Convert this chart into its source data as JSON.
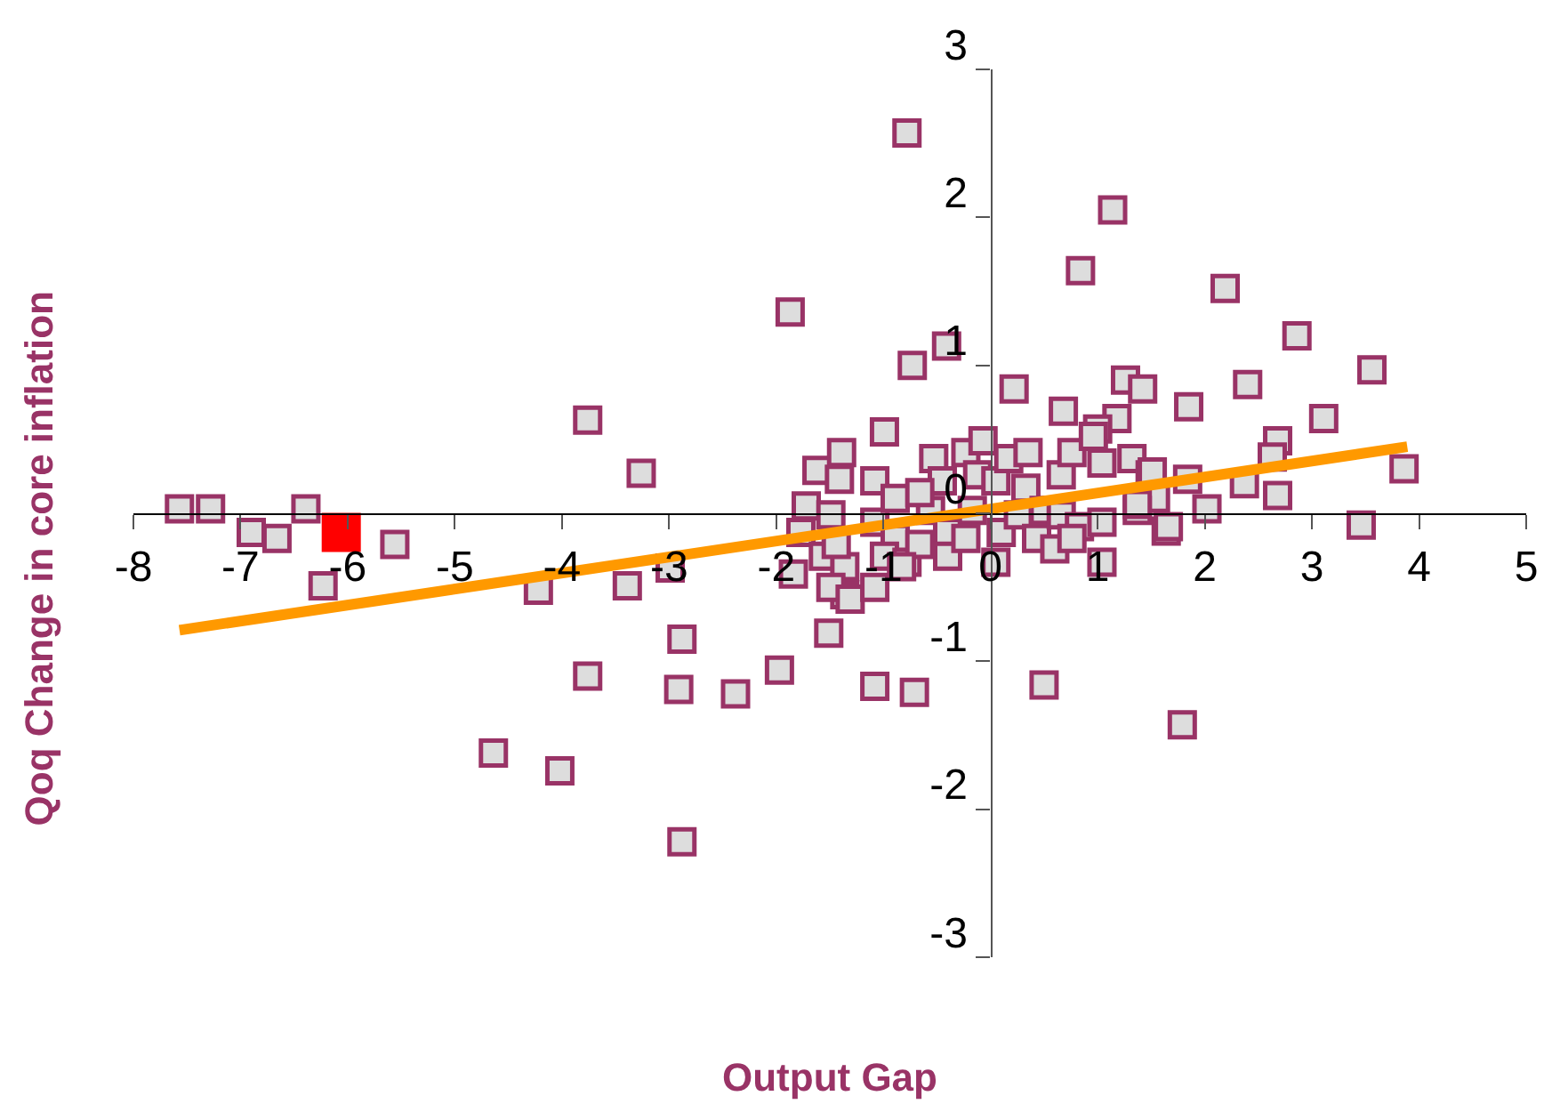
{
  "chart_data": {
    "type": "scatter",
    "xlabel": "Output Gap",
    "ylabel": "Qoq Change in core inflation",
    "xlim": [
      -8,
      5
    ],
    "ylim": [
      -3,
      3
    ],
    "xticks": [
      -8,
      -7,
      -6,
      -5,
      -4,
      -3,
      -2,
      -1,
      0,
      1,
      2,
      3,
      4,
      5
    ],
    "yticks": [
      -3,
      -2,
      -1,
      0,
      1,
      2,
      3
    ],
    "marker": "square",
    "series": [
      {
        "color": "#993366",
        "x": [
          -7.57,
          -7.28,
          -6.9,
          -6.66,
          -6.39,
          -6.23,
          -5.56,
          -4.64,
          -4.22,
          -4.02,
          -3.76,
          -3.76,
          -3.39,
          -3.26,
          -2.99,
          -2.88,
          -2.91,
          -2.88,
          -2.38,
          -1.97,
          -1.87,
          -0.78,
          1.14,
          0.84,
          2.19,
          2.86,
          3.56,
          3.11,
          2.4,
          1.85,
          -0.99,
          -0.73,
          -0.41,
          0.22,
          3.86,
          3.46,
          2.68,
          2.37,
          2.68,
          2.63,
          2.02,
          1.64,
          1.79,
          0.5,
          -0.71,
          -1.08,
          -1.51,
          -1.84,
          -1.36,
          0.68,
          1.26,
          1.42,
          1.18,
          1.0,
          -1.62,
          -1.39,
          -1.41,
          -1.72,
          -1.49,
          -1.77,
          -1.56,
          -1.36,
          -1.49,
          -1.31,
          -1.08,
          -1.08,
          -1.08,
          -0.89,
          -0.89,
          -0.99,
          -0.78,
          -0.66,
          -0.53,
          -0.45,
          -0.56,
          -0.4,
          -0.4,
          -0.23,
          -0.07,
          -0.12,
          -0.17,
          -0.23,
          0.05,
          0.1,
          0.05,
          0.17,
          0.35,
          0.33,
          0.26,
          0.43,
          0.6,
          0.5,
          0.66,
          0.76,
          0.96,
          1.04,
          0.66,
          0.83,
          1.04,
          1.04,
          1.32,
          1.49,
          1.54,
          1.66,
          1.37,
          1.51,
          1.84,
          1.37,
          0.76,
          -0.66,
          -0.83,
          -1.44
        ],
        "values": [
          0.03,
          0.03,
          -0.13,
          -0.17,
          0.03,
          -0.49,
          -0.21,
          -1.62,
          -0.52,
          -1.74,
          -1.1,
          0.63,
          -0.49,
          0.27,
          -0.37,
          -0.85,
          -1.19,
          -2.22,
          -1.22,
          -1.06,
          1.36,
          2.57,
          2.05,
          1.64,
          1.52,
          1.2,
          0.97,
          0.64,
          0.87,
          0.72,
          0.55,
          1.0,
          1.13,
          0.84,
          0.3,
          -0.08,
          0.12,
          0.2,
          0.49,
          0.38,
          0.03,
          -0.12,
          -1.43,
          -1.16,
          -1.21,
          -1.17,
          -0.81,
          -0.41,
          -0.55,
          0.69,
          0.9,
          0.84,
          0.64,
          0.57,
          0.29,
          0.41,
          0.23,
          0.05,
          -0.01,
          -0.13,
          -0.29,
          -0.36,
          -0.5,
          -0.58,
          -0.5,
          0.22,
          -0.06,
          0.1,
          -0.17,
          -0.29,
          -0.33,
          -0.21,
          0.37,
          0.22,
          0.02,
          -0.13,
          -0.29,
          0.41,
          0.49,
          0.26,
          0.02,
          -0.17,
          -0.33,
          -0.13,
          0.22,
          0.37,
          0.41,
          0.17,
          -0.01,
          -0.17,
          -0.24,
          0.02,
          0.26,
          0.41,
          0.52,
          0.34,
          -0.01,
          -0.09,
          -0.06,
          -0.33,
          0.37,
          0.26,
          0.1,
          -0.09,
          0.02,
          0.28,
          0.23,
          0.06,
          -0.17,
          0.14,
          -0.36,
          -0.21
        ]
      },
      {
        "color": "#ff0000",
        "x": [
          -6.06
        ],
        "values": [
          -0.13
        ]
      },
      {
        "type": "line",
        "marker": "none",
        "color": "#ff9900",
        "x": [
          -7.57,
          3.89
        ],
        "values": [
          -0.79,
          0.45
        ]
      }
    ]
  }
}
